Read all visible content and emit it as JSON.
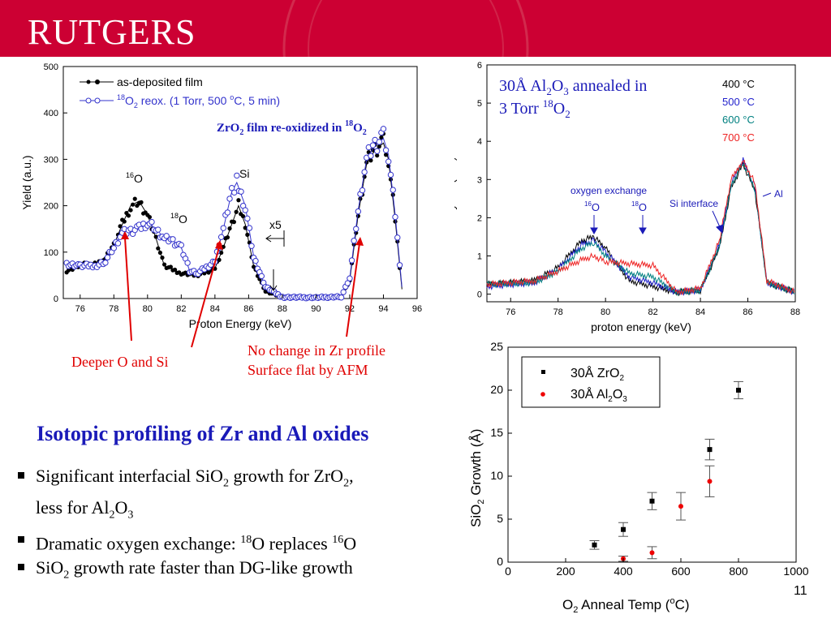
{
  "header": {
    "logo": "RUTGERS",
    "brand_color": "#cc0033"
  },
  "page_number": "11",
  "heading": "Isotopic profiling of Zr and Al oxides",
  "bullets": [
    {
      "a": "Significant interfacial SiO",
      "s": "2",
      "b": " growth for ZrO",
      "s2": "2",
      "c": ",",
      "line2a": "less for Al",
      "line2s": "2",
      "line2b": "O",
      "line2s2": "3"
    },
    {
      "a": "Dramatic oxygen exchange: ",
      "sup1": "18",
      "b": "O replaces ",
      "sup2": "16",
      "c": "O"
    },
    {
      "a": "SiO",
      "s": "2",
      "b": " growth rate faster than DG-like growth"
    }
  ],
  "callouts": {
    "deeper": "Deeper O and Si",
    "nochange_1": "No change in Zr profile",
    "nochange_2": "Surface flat by AFM"
  },
  "chart_data": [
    {
      "type": "scatter",
      "xlabel": "Proton Energy (keV)",
      "ylabel": "Yield (a.u.)",
      "xlim": [
        75,
        96
      ],
      "ylim": [
        0,
        500
      ],
      "xticks": [
        76,
        78,
        80,
        82,
        84,
        86,
        88,
        90,
        92,
        94,
        96
      ],
      "yticks": [
        0,
        100,
        200,
        300,
        400,
        500
      ],
      "title_parts": {
        "a": "ZrO",
        "s": "2",
        "b": " film re-oxidized in ",
        "sup": "18",
        "c": "O",
        "s2": "2"
      },
      "legend": [
        {
          "name": "as-deposited film",
          "color": "#000000"
        },
        {
          "name_parts": {
            "sup": "18",
            "a": "O",
            "s": "2",
            "b": " reox. (1 Torr, 500 ",
            "deg": "o",
            "c": "C, 5 min)"
          },
          "color": "#3333cc"
        }
      ],
      "annotations": {
        "o16": "O",
        "o16_sup": "16",
        "o18": "O",
        "o18_sup": "18",
        "si": "Si",
        "x5": "x5"
      },
      "series": [
        {
          "color": "#000000",
          "points": [
            [
              75.2,
              60
            ],
            [
              76,
              72
            ],
            [
              77,
              75
            ],
            [
              77.5,
              85
            ],
            [
              78,
              115
            ],
            [
              78.5,
              160
            ],
            [
              79,
              200
            ],
            [
              79.5,
              210
            ],
            [
              80,
              180
            ],
            [
              80.5,
              130
            ],
            [
              81,
              70
            ],
            [
              82,
              55
            ],
            [
              83,
              50
            ],
            [
              84,
              65
            ],
            [
              84.5,
              110
            ],
            [
              85,
              160
            ],
            [
              85.4,
              200
            ],
            [
              85.8,
              160
            ],
            [
              86.3,
              70
            ],
            [
              87,
              15
            ],
            [
              88,
              3
            ],
            [
              90,
              2
            ],
            [
              91.5,
              3
            ],
            [
              92,
              40
            ],
            [
              92.5,
              180
            ],
            [
              93,
              290
            ],
            [
              93.5,
              320
            ],
            [
              94,
              335
            ],
            [
              94.3,
              300
            ],
            [
              94.7,
              170
            ],
            [
              95.1,
              20
            ]
          ]
        },
        {
          "color": "#3333cc",
          "points": [
            [
              75.2,
              75
            ],
            [
              76,
              70
            ],
            [
              77,
              72
            ],
            [
              77.5,
              80
            ],
            [
              78,
              110
            ],
            [
              78.5,
              140
            ],
            [
              79,
              145
            ],
            [
              79.5,
              150
            ],
            [
              80,
              165
            ],
            [
              80.5,
              150
            ],
            [
              81,
              130
            ],
            [
              81.5,
              125
            ],
            [
              82,
              110
            ],
            [
              82.5,
              60
            ],
            [
              83,
              55
            ],
            [
              84,
              80
            ],
            [
              84.5,
              150
            ],
            [
              85,
              230
            ],
            [
              85.3,
              250
            ],
            [
              85.8,
              200
            ],
            [
              86.3,
              90
            ],
            [
              87,
              25
            ],
            [
              88,
              3
            ],
            [
              90,
              2
            ],
            [
              91.5,
              4
            ],
            [
              92,
              45
            ],
            [
              92.5,
              190
            ],
            [
              93,
              300
            ],
            [
              93.5,
              330
            ],
            [
              94,
              345
            ],
            [
              94.3,
              310
            ],
            [
              94.7,
              180
            ],
            [
              95.1,
              25
            ]
          ]
        }
      ]
    },
    {
      "type": "line",
      "xlabel": "proton energy (keV)",
      "ylabel": "yield (a.u.)",
      "xlim": [
        75,
        88
      ],
      "ylim": [
        -0.2,
        6
      ],
      "xticks": [
        76,
        78,
        80,
        82,
        84,
        86,
        88
      ],
      "yticks": [
        0,
        1,
        2,
        3,
        4,
        5,
        6
      ],
      "title_parts": {
        "a": "30Å Al",
        "s": "2",
        "b": "O",
        "s2": "3",
        "c": " annealed in",
        "line2a": "3 Torr ",
        "sup": "18",
        "line2b": "O",
        "s3": "2"
      },
      "legend": [
        {
          "name": "400 °C",
          "color": "#000000"
        },
        {
          "name": "500 °C",
          "color": "#2222cc"
        },
        {
          "name": "600 °C",
          "color": "#008080"
        },
        {
          "name": "700 °C",
          "color": "#ee2222"
        }
      ],
      "annotations": {
        "exchange": "oxygen exchange",
        "o16": "O",
        "o16_sup": "16",
        "o18": "O",
        "o18_sup": "18",
        "si_interface": "Si interface",
        "al": "Al"
      },
      "series": [
        {
          "color": "#000000",
          "points": [
            [
              75,
              0.25
            ],
            [
              77,
              0.35
            ],
            [
              78,
              0.7
            ],
            [
              79,
              1.4
            ],
            [
              79.5,
              1.5
            ],
            [
              80,
              1.2
            ],
            [
              81,
              0.35
            ],
            [
              82,
              0.2
            ],
            [
              83,
              0.05
            ],
            [
              84,
              0.1
            ],
            [
              84.8,
              1.2
            ],
            [
              85.3,
              2.8
            ],
            [
              85.8,
              3.4
            ],
            [
              86.3,
              2.7
            ],
            [
              86.8,
              0.3
            ],
            [
              88,
              0.05
            ]
          ]
        },
        {
          "color": "#2222cc",
          "points": [
            [
              75,
              0.2
            ],
            [
              77,
              0.3
            ],
            [
              78,
              0.65
            ],
            [
              79,
              1.3
            ],
            [
              79.5,
              1.4
            ],
            [
              80,
              1.1
            ],
            [
              81,
              0.45
            ],
            [
              82,
              0.3
            ],
            [
              83,
              0.05
            ],
            [
              84,
              0.1
            ],
            [
              84.8,
              1.3
            ],
            [
              85.3,
              2.9
            ],
            [
              85.8,
              3.5
            ],
            [
              86.3,
              2.8
            ],
            [
              86.8,
              0.3
            ],
            [
              88,
              0.05
            ]
          ]
        },
        {
          "color": "#008080",
          "points": [
            [
              75,
              0.25
            ],
            [
              77,
              0.3
            ],
            [
              78,
              0.6
            ],
            [
              79,
              1.2
            ],
            [
              79.5,
              1.35
            ],
            [
              80,
              1.0
            ],
            [
              81,
              0.55
            ],
            [
              82,
              0.45
            ],
            [
              83,
              0.05
            ],
            [
              84,
              0.1
            ],
            [
              84.8,
              1.25
            ],
            [
              85.3,
              2.85
            ],
            [
              85.8,
              3.45
            ],
            [
              86.3,
              2.75
            ],
            [
              86.8,
              0.3
            ],
            [
              88,
              0.05
            ]
          ]
        },
        {
          "color": "#ee2222",
          "points": [
            [
              75,
              0.25
            ],
            [
              77,
              0.35
            ],
            [
              78,
              0.6
            ],
            [
              79,
              0.9
            ],
            [
              79.5,
              1.0
            ],
            [
              80,
              0.85
            ],
            [
              81,
              0.8
            ],
            [
              82,
              0.75
            ],
            [
              83,
              0.05
            ],
            [
              84,
              0.15
            ],
            [
              84.8,
              1.4
            ],
            [
              85.3,
              3.0
            ],
            [
              85.8,
              3.5
            ],
            [
              86.3,
              2.9
            ],
            [
              86.8,
              0.35
            ],
            [
              88,
              0.05
            ]
          ]
        }
      ]
    },
    {
      "type": "scatter",
      "xlabel_parts": {
        "a": "O",
        "s": "2",
        "b": " Anneal Temp (",
        "deg": "o",
        "c": "C)"
      },
      "ylabel_parts": {
        "a": "SiO",
        "s": "2",
        "b": " Growth (Å)"
      },
      "xlim": [
        0,
        1000
      ],
      "ylim": [
        0,
        25
      ],
      "xticks": [
        0,
        200,
        400,
        600,
        800,
        1000
      ],
      "yticks": [
        0,
        5,
        10,
        15,
        20,
        25
      ],
      "legend": [
        {
          "name_parts": {
            "a": "30Å ZrO",
            "s": "2"
          },
          "color": "#000000",
          "marker": "square"
        },
        {
          "name_parts": {
            "a": "30Å Al",
            "s": "2",
            "b": "O",
            "s2": "3"
          },
          "color": "#ee0000",
          "marker": "circle"
        }
      ],
      "series": [
        {
          "marker": "square",
          "color": "#000000",
          "points": [
            [
              300,
              2.0
            ],
            [
              400,
              3.8
            ],
            [
              500,
              7.1
            ],
            [
              700,
              13.1
            ],
            [
              800,
              20.0
            ]
          ],
          "errors": [
            0.5,
            0.8,
            1.0,
            1.2,
            1.0
          ]
        },
        {
          "marker": "circle",
          "color": "#ee0000",
          "points": [
            [
              400,
              0.4
            ],
            [
              500,
              1.1
            ],
            [
              600,
              6.5
            ],
            [
              700,
              9.4
            ]
          ],
          "errors": [
            0.3,
            0.7,
            1.6,
            1.8
          ]
        }
      ]
    }
  ]
}
